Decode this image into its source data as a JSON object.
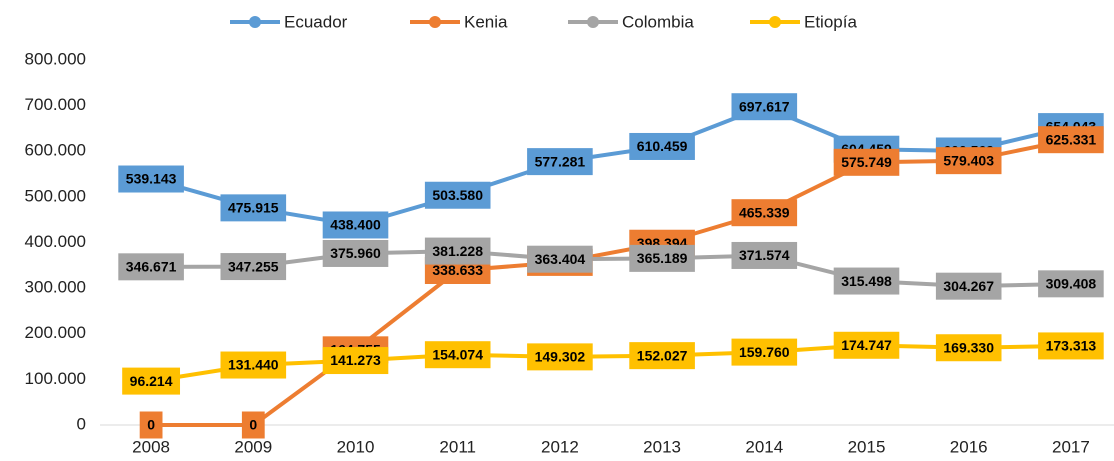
{
  "chart_data": {
    "type": "line",
    "categories": [
      "2008",
      "2009",
      "2010",
      "2011",
      "2012",
      "2013",
      "2014",
      "2015",
      "2016",
      "2017"
    ],
    "series": [
      {
        "name": "Ecuador",
        "color": "#5b9bd5",
        "values": [
          539143,
          475915,
          438400,
          503580,
          577281,
          610459,
          697617,
          604459,
          600569,
          654043
        ],
        "value_labels": [
          "539.143",
          "475.915",
          "438.400",
          "503.580",
          "577.281",
          "610.459",
          "697.617",
          "604.459",
          "600.569",
          "654.043"
        ]
      },
      {
        "name": "Kenia",
        "color": "#ed7d31",
        "values": [
          0,
          0,
          164755,
          338633,
          356386,
          398394,
          465339,
          575749,
          579403,
          625331
        ],
        "value_labels": [
          "0",
          "0",
          "164.755",
          "338.633",
          "356.386",
          "398.394",
          "465.339",
          "575.749",
          "579.403",
          "625.331"
        ]
      },
      {
        "name": "Colombia",
        "color": "#a5a5a5",
        "values": [
          346671,
          347255,
          375960,
          381228,
          363404,
          365189,
          371574,
          315498,
          304267,
          309408
        ],
        "value_labels": [
          "346.671",
          "347.255",
          "375.960",
          "381.228",
          "363.404",
          "365.189",
          "371.574",
          "315.498",
          "304.267",
          "309.408"
        ]
      },
      {
        "name": "Etiopía",
        "color": "#ffc000",
        "values": [
          96214,
          131440,
          141273,
          154074,
          149302,
          152027,
          159760,
          174747,
          169330,
          173313
        ],
        "value_labels": [
          "96.214",
          "131.440",
          "141.273",
          "154.074",
          "149.302",
          "152.027",
          "159.760",
          "174.747",
          "169.330",
          "173.313"
        ]
      }
    ],
    "ylim": [
      0,
      800000
    ],
    "yticks": [
      0,
      {
        "value": 100000,
        "label": "100.000"
      },
      {
        "value": 200000,
        "label": "200.000"
      },
      {
        "value": 300000,
        "label": "300.000"
      },
      {
        "value": 400000,
        "label": "400.000"
      },
      {
        "value": 500000,
        "label": "500.000"
      },
      {
        "value": 600000,
        "label": "600.000"
      },
      {
        "value": 700000,
        "label": "700.000"
      },
      {
        "value": 800000,
        "label": "800.000"
      }
    ],
    "legend": "top"
  }
}
